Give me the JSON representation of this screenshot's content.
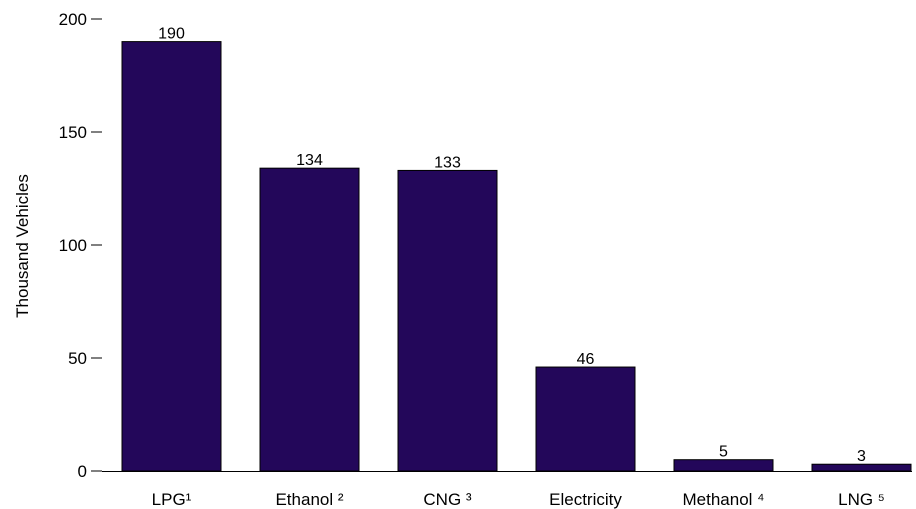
{
  "chart_data": {
    "type": "bar",
    "title": "",
    "xlabel": "",
    "ylabel": "Thousand Vehicles",
    "categories": [
      "LPG¹",
      "Ethanol ²",
      "CNG ³",
      "Electricity",
      "Methanol ⁴",
      "LNG ⁵"
    ],
    "values": [
      190,
      134,
      133,
      46,
      5,
      3
    ],
    "data_labels": [
      "190",
      "134",
      "133",
      "46",
      "5",
      "3"
    ],
    "ylim": [
      0,
      200
    ],
    "yticks": [
      0,
      50,
      100,
      150,
      200
    ],
    "ytick_labels": [
      "0",
      "50",
      "100",
      "150",
      "200"
    ],
    "grid": false,
    "legend": "none",
    "colors": {
      "bar": "#23075a",
      "text": "#000000",
      "axis": "#000000"
    }
  }
}
